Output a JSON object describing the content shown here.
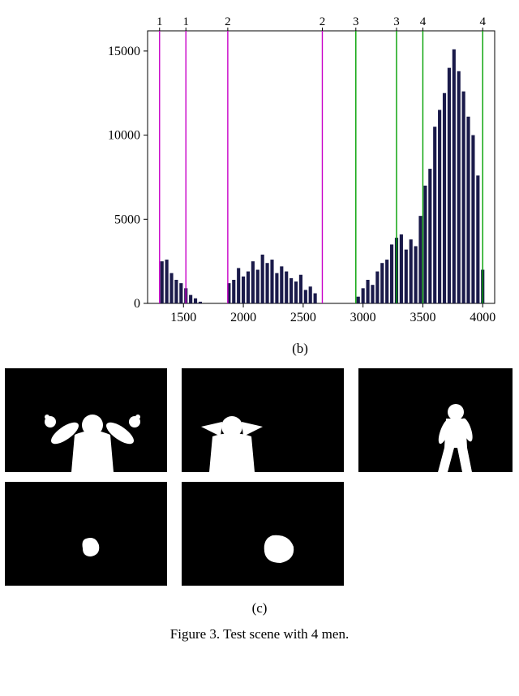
{
  "histogram": {
    "type": "histogram",
    "xlim": [
      1200,
      4100
    ],
    "ylim": [
      0,
      16200
    ],
    "xticks": [
      1500,
      2000,
      2500,
      3000,
      3500,
      4000
    ],
    "yticks": [
      0,
      5000,
      10000,
      15000
    ],
    "tick_fontsize": 16,
    "top_label_fontsize": 15,
    "bar_color": "#1a1a4a",
    "axis_color": "#000000",
    "background_color": "#ffffff",
    "plot_aspect": "500x370",
    "bars": [
      {
        "x": 1320,
        "y": 2500
      },
      {
        "x": 1360,
        "y": 2600
      },
      {
        "x": 1400,
        "y": 1800
      },
      {
        "x": 1440,
        "y": 1400
      },
      {
        "x": 1480,
        "y": 1200
      },
      {
        "x": 1520,
        "y": 900
      },
      {
        "x": 1560,
        "y": 500
      },
      {
        "x": 1600,
        "y": 300
      },
      {
        "x": 1640,
        "y": 100
      },
      {
        "x": 1880,
        "y": 1200
      },
      {
        "x": 1920,
        "y": 1400
      },
      {
        "x": 1960,
        "y": 2100
      },
      {
        "x": 2000,
        "y": 1600
      },
      {
        "x": 2040,
        "y": 1900
      },
      {
        "x": 2080,
        "y": 2500
      },
      {
        "x": 2120,
        "y": 2000
      },
      {
        "x": 2160,
        "y": 2900
      },
      {
        "x": 2200,
        "y": 2400
      },
      {
        "x": 2240,
        "y": 2600
      },
      {
        "x": 2280,
        "y": 1800
      },
      {
        "x": 2320,
        "y": 2200
      },
      {
        "x": 2360,
        "y": 1900
      },
      {
        "x": 2400,
        "y": 1500
      },
      {
        "x": 2440,
        "y": 1300
      },
      {
        "x": 2480,
        "y": 1700
      },
      {
        "x": 2520,
        "y": 800
      },
      {
        "x": 2560,
        "y": 1000
      },
      {
        "x": 2600,
        "y": 600
      },
      {
        "x": 2960,
        "y": 400
      },
      {
        "x": 3000,
        "y": 900
      },
      {
        "x": 3040,
        "y": 1400
      },
      {
        "x": 3080,
        "y": 1100
      },
      {
        "x": 3120,
        "y": 1900
      },
      {
        "x": 3160,
        "y": 2400
      },
      {
        "x": 3200,
        "y": 2600
      },
      {
        "x": 3240,
        "y": 3500
      },
      {
        "x": 3280,
        "y": 3900
      },
      {
        "x": 3320,
        "y": 4100
      },
      {
        "x": 3360,
        "y": 3200
      },
      {
        "x": 3400,
        "y": 3800
      },
      {
        "x": 3440,
        "y": 3400
      },
      {
        "x": 3480,
        "y": 5200
      },
      {
        "x": 3520,
        "y": 7000
      },
      {
        "x": 3560,
        "y": 8000
      },
      {
        "x": 3600,
        "y": 10500
      },
      {
        "x": 3640,
        "y": 11500
      },
      {
        "x": 3680,
        "y": 12500
      },
      {
        "x": 3720,
        "y": 14000
      },
      {
        "x": 3760,
        "y": 15100
      },
      {
        "x": 3800,
        "y": 13800
      },
      {
        "x": 3840,
        "y": 12600
      },
      {
        "x": 3880,
        "y": 11100
      },
      {
        "x": 3920,
        "y": 10000
      },
      {
        "x": 3960,
        "y": 7600
      },
      {
        "x": 4000,
        "y": 2000
      }
    ],
    "bar_halfwidth": 14,
    "vlines": [
      {
        "x": 1300,
        "color": "#c800c8",
        "label": "1"
      },
      {
        "x": 1520,
        "color": "#c800c8",
        "label": "1"
      },
      {
        "x": 1870,
        "color": "#c800c8",
        "label": "2"
      },
      {
        "x": 2660,
        "color": "#c800c8",
        "label": "2"
      },
      {
        "x": 2940,
        "color": "#00a000",
        "label": "3"
      },
      {
        "x": 3280,
        "color": "#00a000",
        "label": "3"
      },
      {
        "x": 3500,
        "color": "#00a000",
        "label": "4"
      },
      {
        "x": 4000,
        "color": "#00a000",
        "label": "4"
      }
    ],
    "vline_width": 1.4
  },
  "sublabels": {
    "b": "(b)",
    "c": "(c)"
  },
  "caption": "Figure 3. Test scene with 4 men.",
  "silhouettes": {
    "items": [
      {
        "row": 1,
        "col": 1,
        "kind": "person-arms-up"
      },
      {
        "row": 1,
        "col": 2,
        "kind": "person-hands-head"
      },
      {
        "row": 1,
        "col": 3,
        "kind": "person-walking"
      },
      {
        "row": 2,
        "col": 1,
        "kind": "blob-small"
      },
      {
        "row": 2,
        "col": 2,
        "kind": "blob-medium"
      }
    ],
    "thumb_bg": "#000000",
    "fg": "#ffffff"
  }
}
